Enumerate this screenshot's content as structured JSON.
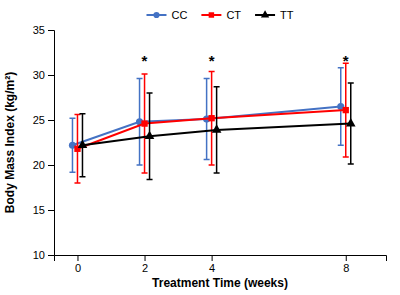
{
  "chart_data": {
    "type": "line",
    "xlabel": "Treatment Time (weeks)",
    "ylabel": "Body Mass Index (kg/m²)",
    "x": [
      0,
      2,
      4,
      8
    ],
    "series": [
      {
        "name": "CC",
        "color": "#4472C4",
        "marker": "circle",
        "values": [
          22.2,
          24.8,
          25.1,
          26.5
        ],
        "errors": [
          3.0,
          4.8,
          4.5,
          4.3
        ]
      },
      {
        "name": "CT",
        "color": "#FF0000",
        "marker": "square",
        "values": [
          21.8,
          24.6,
          25.2,
          26.1
        ],
        "errors": [
          3.8,
          5.5,
          5.2,
          5.2
        ]
      },
      {
        "name": "TT",
        "color": "#000000",
        "marker": "triangle",
        "values": [
          22.2,
          23.2,
          23.9,
          24.6
        ],
        "errors": [
          3.5,
          4.8,
          4.8,
          4.5
        ]
      }
    ],
    "annotations": [
      {
        "text": "*",
        "x": 2,
        "y": 31.0
      },
      {
        "text": "*",
        "x": 4,
        "y": 31.0
      },
      {
        "text": "*",
        "x": 8,
        "y": 31.0
      }
    ],
    "xlim": [
      -0.7,
      9.2
    ],
    "ylim": [
      10,
      35
    ],
    "xticks": [
      0,
      2,
      4,
      8
    ],
    "yticks": [
      10,
      15,
      20,
      25,
      30,
      35
    ],
    "grid": false,
    "legend": "top"
  }
}
